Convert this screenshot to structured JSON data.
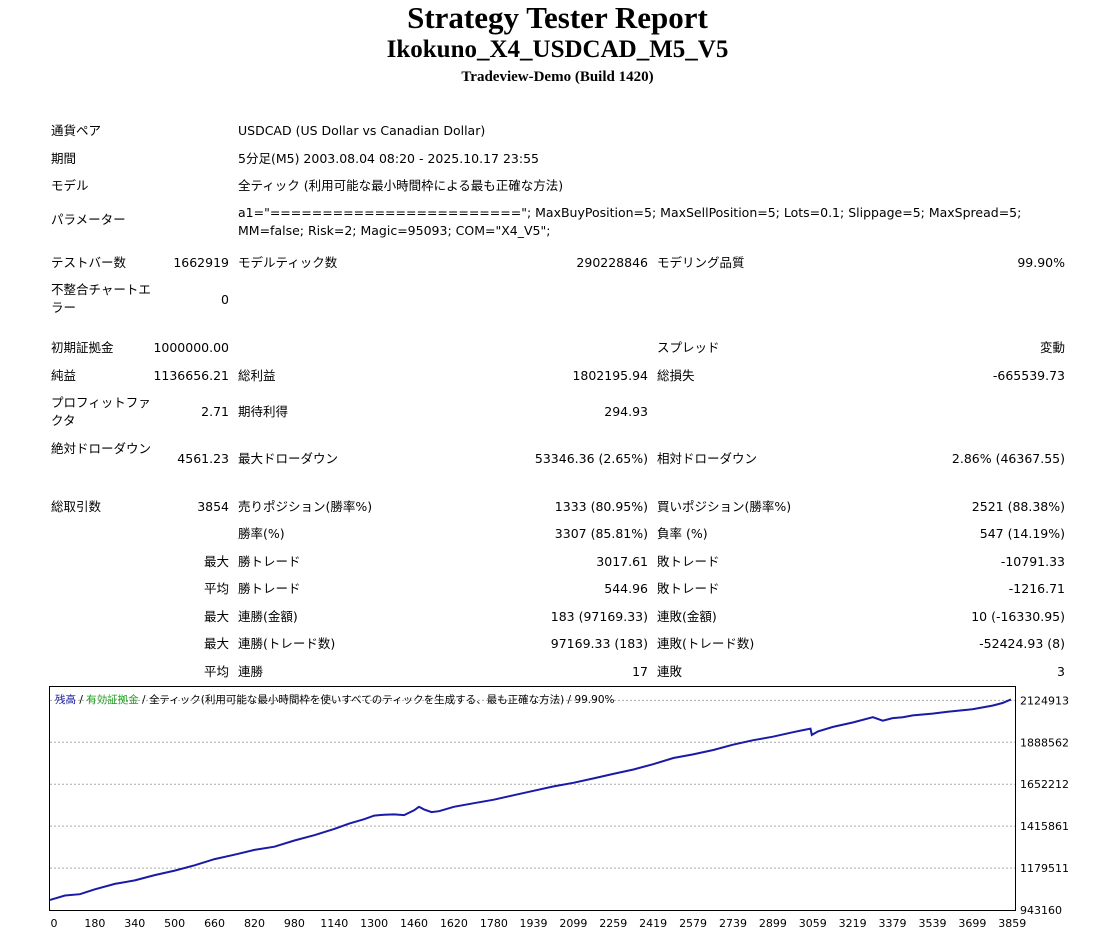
{
  "header": {
    "title": "Strategy Tester Report",
    "expert": "Ikokuno_X4_USDCAD_M5_V5",
    "server": "Tradeview-Demo (Build 1420)"
  },
  "info": {
    "symbol_label": "通貨ペア",
    "symbol_value": "USDCAD (US Dollar vs Canadian Dollar)",
    "period_label": "期間",
    "period_value": "5分足(M5) 2003.08.04 08:20 - 2025.10.17 23:55",
    "model_label": "モデル",
    "model_value": "全ティック (利用可能な最小時間枠による最も正確な方法)",
    "params_label": "パラメーター",
    "params_value": "a1=\"========================\"; MaxBuyPosition=5; MaxSellPosition=5; Lots=0.1; Slippage=5; MaxSpread=5; MM=false; Risk=2; Magic=95093; COM=\"X4_V5\";"
  },
  "stats": {
    "bars_label": "テストバー数",
    "bars_value": "1662919",
    "ticks_label": "モデルティック数",
    "ticks_value": "290228846",
    "quality_label": "モデリング品質",
    "quality_value": "99.90%",
    "mismatch_label": "不整合チャートエラー",
    "mismatch_value": "0",
    "deposit_label": "初期証拠金",
    "deposit_value": "1000000.00",
    "spread_label": "スプレッド",
    "spread_value": "変動",
    "netprofit_label": "純益",
    "netprofit_value": "1136656.21",
    "grossprofit_label": "総利益",
    "grossprofit_value": "1802195.94",
    "grossloss_label": "総損失",
    "grossloss_value": "-665539.73",
    "pf_label": "プロフィットファクタ",
    "pf_value": "2.71",
    "payoff_label": "期待利得",
    "payoff_value": "294.93",
    "absdd_label": "絶対ドローダウン",
    "absdd_value": "4561.23",
    "maxdd_label": "最大ドローダウン",
    "maxdd_value": "53346.36 (2.65%)",
    "reldd_label": "相対ドローダウン",
    "reldd_value": "2.86% (46367.55)",
    "trades_label": "総取引数",
    "trades_value": "3854",
    "short_label": "売りポジション(勝率%)",
    "short_value": "1333 (80.95%)",
    "long_label": "買いポジション(勝率%)",
    "long_value": "2521 (88.38%)",
    "winrate_label": "勝率(%)",
    "winrate_value": "3307 (85.81%)",
    "lossrate_label": "負率 (%)",
    "lossrate_value": "547 (14.19%)",
    "max_label": "最大",
    "avg_label": "平均",
    "largest_win_label": "勝トレード",
    "largest_win_value": "3017.61",
    "largest_loss_label": "敗トレード",
    "largest_loss_value": "-10791.33",
    "avg_win_label": "勝トレード",
    "avg_win_value": "544.96",
    "avg_loss_label": "敗トレード",
    "avg_loss_value": "-1216.71",
    "maxconswin_money_label": "連勝(金額)",
    "maxconswin_money_value": "183 (97169.33)",
    "maxconsloss_money_label": "連敗(金額)",
    "maxconsloss_money_value": "10 (-16330.95)",
    "maxconswin_count_label": "連勝(トレード数)",
    "maxconswin_count_value": "97169.33 (183)",
    "maxconsloss_count_label": "連敗(トレード数)",
    "maxconsloss_count_value": "-52424.93 (8)",
    "avgconswin_label": "連勝",
    "avgconswin_value": "17",
    "avgconsloss_label": "連敗",
    "avgconsloss_value": "3"
  },
  "chart_data": {
    "type": "line",
    "legend": {
      "balance": "残高",
      "sep1": " / ",
      "equity": "有効証拠金",
      "sep2": " / ",
      "model": "全ティック(利用可能な最小時間枠を使いすべてのティックを生成する、最も正確な方法)",
      "sep3": " / ",
      "quality": "99.90%"
    },
    "colors": {
      "line": "#1a1aa6",
      "balance": "#1a1aa6",
      "equity": "#20a020",
      "text": "#000000"
    },
    "x_ticks": [
      0,
      180,
      340,
      500,
      660,
      820,
      980,
      1140,
      1300,
      1460,
      1620,
      1780,
      1939,
      2099,
      2259,
      2419,
      2579,
      2739,
      2899,
      3059,
      3219,
      3379,
      3539,
      3699,
      3859
    ],
    "y_ticks": [
      2124913,
      1888562,
      1652212,
      1415861,
      1179511,
      943160
    ],
    "xlim": [
      0,
      3854
    ],
    "ylim": [
      943160,
      2200000
    ],
    "x": [
      0,
      60,
      120,
      180,
      260,
      340,
      420,
      500,
      580,
      660,
      740,
      820,
      900,
      980,
      1060,
      1140,
      1200,
      1260,
      1300,
      1340,
      1380,
      1420,
      1460,
      1480,
      1500,
      1530,
      1560,
      1620,
      1700,
      1780,
      1860,
      1939,
      2020,
      2099,
      2180,
      2259,
      2340,
      2419,
      2500,
      2579,
      2660,
      2739,
      2820,
      2899,
      2980,
      3030,
      3050,
      3055,
      3080,
      3140,
      3219,
      3300,
      3340,
      3379,
      3420,
      3460,
      3539,
      3600,
      3699,
      3780,
      3820,
      3854
    ],
    "values": [
      1000000,
      1025000,
      1032000,
      1060000,
      1090000,
      1110000,
      1140000,
      1165000,
      1195000,
      1230000,
      1255000,
      1282000,
      1300000,
      1335000,
      1365000,
      1400000,
      1430000,
      1455000,
      1475000,
      1480000,
      1482000,
      1478000,
      1505000,
      1525000,
      1510000,
      1495000,
      1500000,
      1525000,
      1545000,
      1565000,
      1590000,
      1615000,
      1640000,
      1660000,
      1685000,
      1710000,
      1735000,
      1765000,
      1800000,
      1820000,
      1845000,
      1875000,
      1900000,
      1920000,
      1945000,
      1960000,
      1965000,
      1930000,
      1950000,
      1975000,
      2000000,
      2030000,
      2010000,
      2025000,
      2030000,
      2040000,
      2050000,
      2060000,
      2075000,
      2095000,
      2110000,
      2130000
    ]
  }
}
